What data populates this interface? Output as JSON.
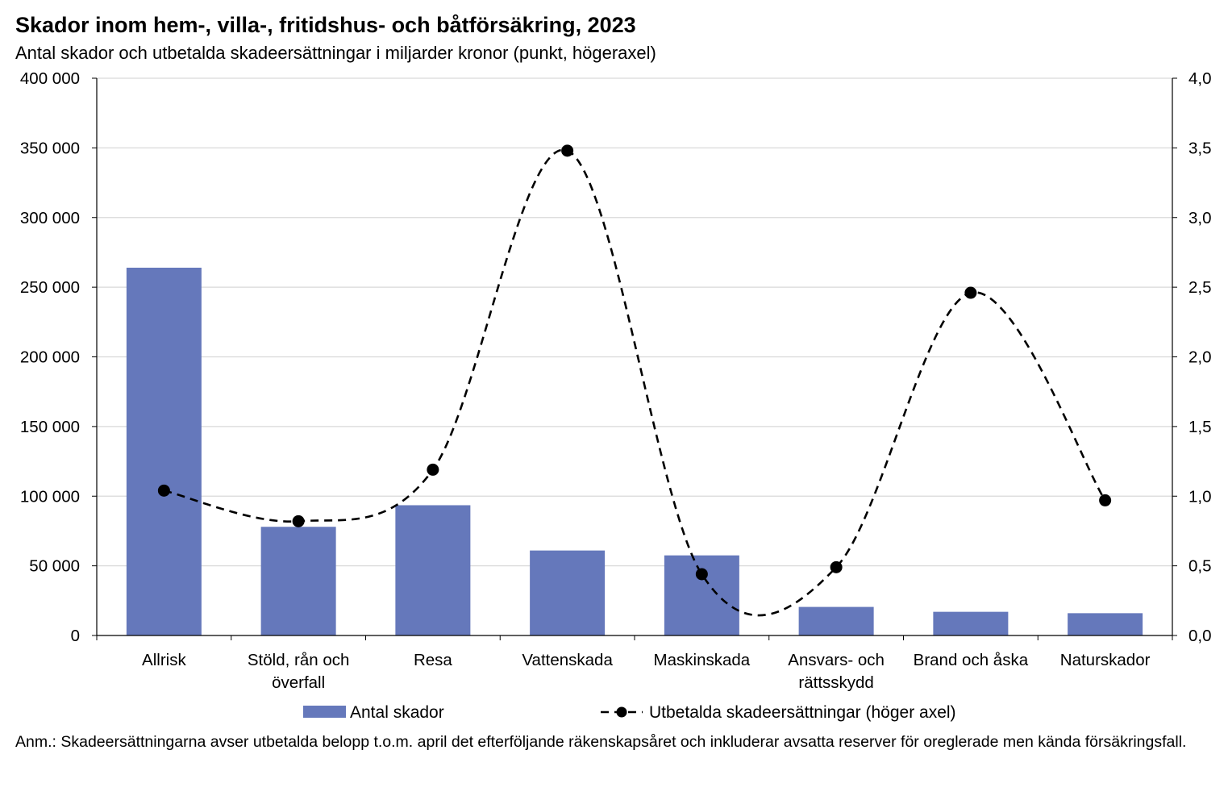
{
  "title": "Skador inom hem-, villa-, fritidshus- och båtförsäkring, 2023",
  "subtitle": "Antal skador och utbetalda skadeersättningar i miljarder kronor (punkt, högeraxel)",
  "note": "Anm.: Skadeersättningarna avser utbetalda belopp t.o.m. april det efterföljande räkenskapsåret och inkluderar avsatta reserver för oreglerade men kända försäkringsfall.",
  "chart_data": {
    "type": "bar",
    "categories": [
      [
        "Allrisk"
      ],
      [
        "Stöld, rån och",
        "överfall"
      ],
      [
        "Resa"
      ],
      [
        "Vattenskada"
      ],
      [
        "Maskinskada"
      ],
      [
        "Ansvars- och",
        "rättsskydd"
      ],
      [
        "Brand och åska"
      ],
      [
        "Naturskador"
      ]
    ],
    "series": [
      {
        "name": "Antal skador",
        "type": "bar",
        "axis": "left",
        "color": "#6578bb",
        "values": [
          264000,
          78000,
          93500,
          61000,
          57500,
          20500,
          17000,
          16000
        ]
      },
      {
        "name": "Utbetalda skadeersättningar (höger axel)",
        "type": "line",
        "style": "dashed-smooth-markers",
        "axis": "right",
        "color": "#000000",
        "values": [
          1.04,
          0.82,
          1.19,
          3.48,
          0.44,
          0.49,
          2.46,
          0.97
        ]
      }
    ],
    "y_left": {
      "min": 0,
      "max": 400000,
      "ticks": [
        "0",
        "50 000",
        "100 000",
        "150 000",
        "200 000",
        "250 000",
        "300 000",
        "350 000",
        "400 000"
      ]
    },
    "y_right": {
      "min": 0,
      "max": 4,
      "ticks": [
        "0,0",
        "0,5",
        "1,0",
        "1,5",
        "2,0",
        "2,5",
        "3,0",
        "3,5",
        "4,0"
      ]
    },
    "grid": true,
    "legend_position": "bottom"
  }
}
